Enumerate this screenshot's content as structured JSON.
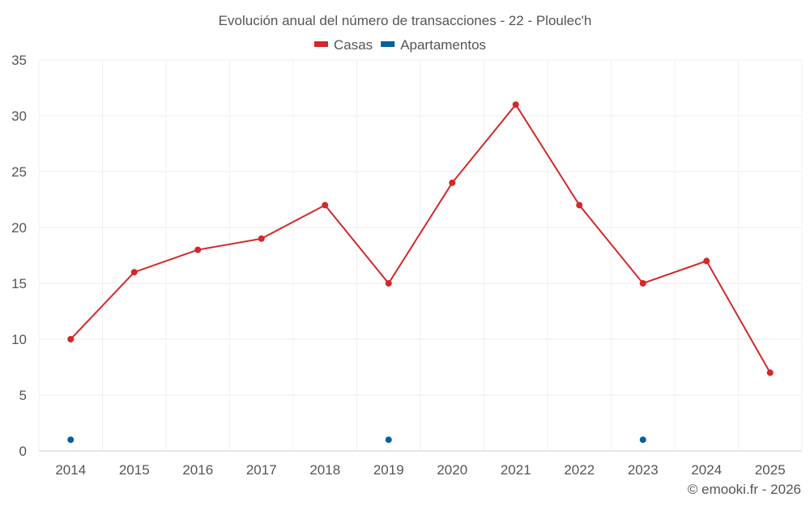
{
  "chart_data": {
    "type": "line",
    "title": "Evolución anual del número de transacciones - 22 - Ploulec'h",
    "categories": [
      "2014",
      "2015",
      "2016",
      "2017",
      "2018",
      "2019",
      "2020",
      "2021",
      "2022",
      "2023",
      "2024",
      "2025"
    ],
    "series": [
      {
        "name": "Casas",
        "color": "#d62728",
        "style": "line+markers",
        "values": [
          10,
          16,
          18,
          19,
          22,
          15,
          24,
          31,
          22,
          15,
          17,
          7
        ]
      },
      {
        "name": "Apartamentos",
        "color": "#00629b",
        "style": "markers",
        "values": [
          1,
          null,
          null,
          null,
          null,
          1,
          null,
          null,
          null,
          1,
          null,
          null
        ]
      }
    ],
    "ylim": [
      0,
      35
    ],
    "yticks": [
      0,
      5,
      10,
      15,
      20,
      25,
      30,
      35
    ],
    "grid": true,
    "legend_position": "top-center",
    "xlabel": "",
    "ylabel": ""
  },
  "credit": "© emooki.fr - 2026"
}
